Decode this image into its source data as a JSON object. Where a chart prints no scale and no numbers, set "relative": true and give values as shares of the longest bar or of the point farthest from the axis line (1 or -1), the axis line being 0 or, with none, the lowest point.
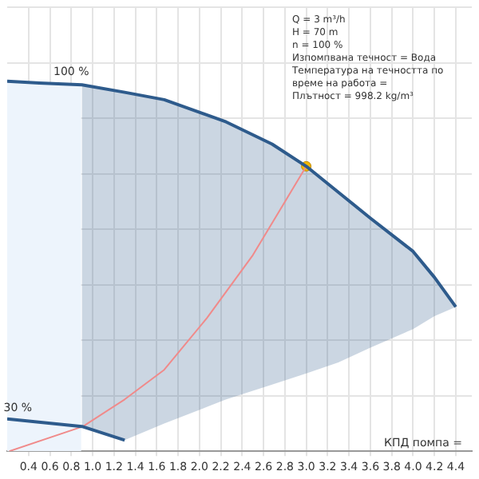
{
  "chart_data": {
    "type": "line",
    "relative": true,
    "xlabel": "КПД помпа =",
    "xlim": [
      0.2,
      4.55
    ],
    "xticks": [
      0.4,
      0.6,
      0.8,
      {
        "value": 1,
        "label": "1.0"
      },
      1.2,
      1.4,
      1.6,
      1.8,
      {
        "value": 2,
        "label": "2.0"
      },
      2.2,
      2.4,
      2.6,
      2.8,
      {
        "value": 3,
        "label": "3.0"
      },
      3.2,
      3.4,
      3.6,
      3.8,
      {
        "value": 4,
        "label": "4.0"
      },
      4.2,
      4.4
    ],
    "grid": true,
    "legend": false,
    "line_style": "solid",
    "series": [
      {
        "color": "#2e5b8c",
        "x": [
          0.2,
          0.5,
          0.9,
          1.3,
          1.67,
          2.25,
          2.68,
          3.0,
          3.3,
          3.6,
          4.0,
          4.2,
          4.4
        ],
        "values": [
          1.0,
          0.995,
          0.99,
          0.97,
          0.95,
          0.89,
          0.83,
          0.77,
          0.7,
          0.63,
          0.54,
          0.47,
          0.39
        ],
        "upper": [
          null,
          null,
          0.99,
          0.97,
          0.95,
          0.89,
          0.83,
          0.77,
          0.7,
          0.63,
          0.54,
          0.47,
          0.39
        ],
        "lower": [
          null,
          null,
          0.067,
          0.03,
          0.075,
          0.14,
          0.18,
          0.21,
          0.24,
          0.28,
          0.33,
          0.365,
          0.39
        ]
      },
      {
        "color": "#2e5b8c",
        "x": [
          0.2,
          0.9,
          1.3
        ],
        "values": [
          0.0875,
          0.067,
          0.03
        ]
      },
      {
        "color": "#f08a8a",
        "x": [
          0.22,
          0.91,
          1.3,
          1.67,
          2.07,
          2.5,
          3.0
        ],
        "values": [
          0,
          0.067,
          0.14,
          0.22,
          0.36,
          0.53,
          0.77
        ]
      },
      {
        "type": "scatter",
        "color": "#f5b800",
        "marker": "circle",
        "x": [
          3.0
        ],
        "values": [
          0.77
        ]
      }
    ],
    "bands": [
      {
        "axis": "x",
        "from": 0.2,
        "to": 0.9,
        "color": "#edf4fc"
      }
    ],
    "annotations": [
      {
        "text": "100 %",
        "x": 0.8,
        "y": 1.0
      },
      {
        "text": "30 %",
        "x": 0.3,
        "y": 0.09
      },
      "Q = 3 m³/h",
      "H = 70 m",
      "n = 100 %",
      "Изпомпвана течност = Вода",
      "Температура на течността по време на работа =",
      "Плътност = 998.2 kg/m³"
    ]
  }
}
